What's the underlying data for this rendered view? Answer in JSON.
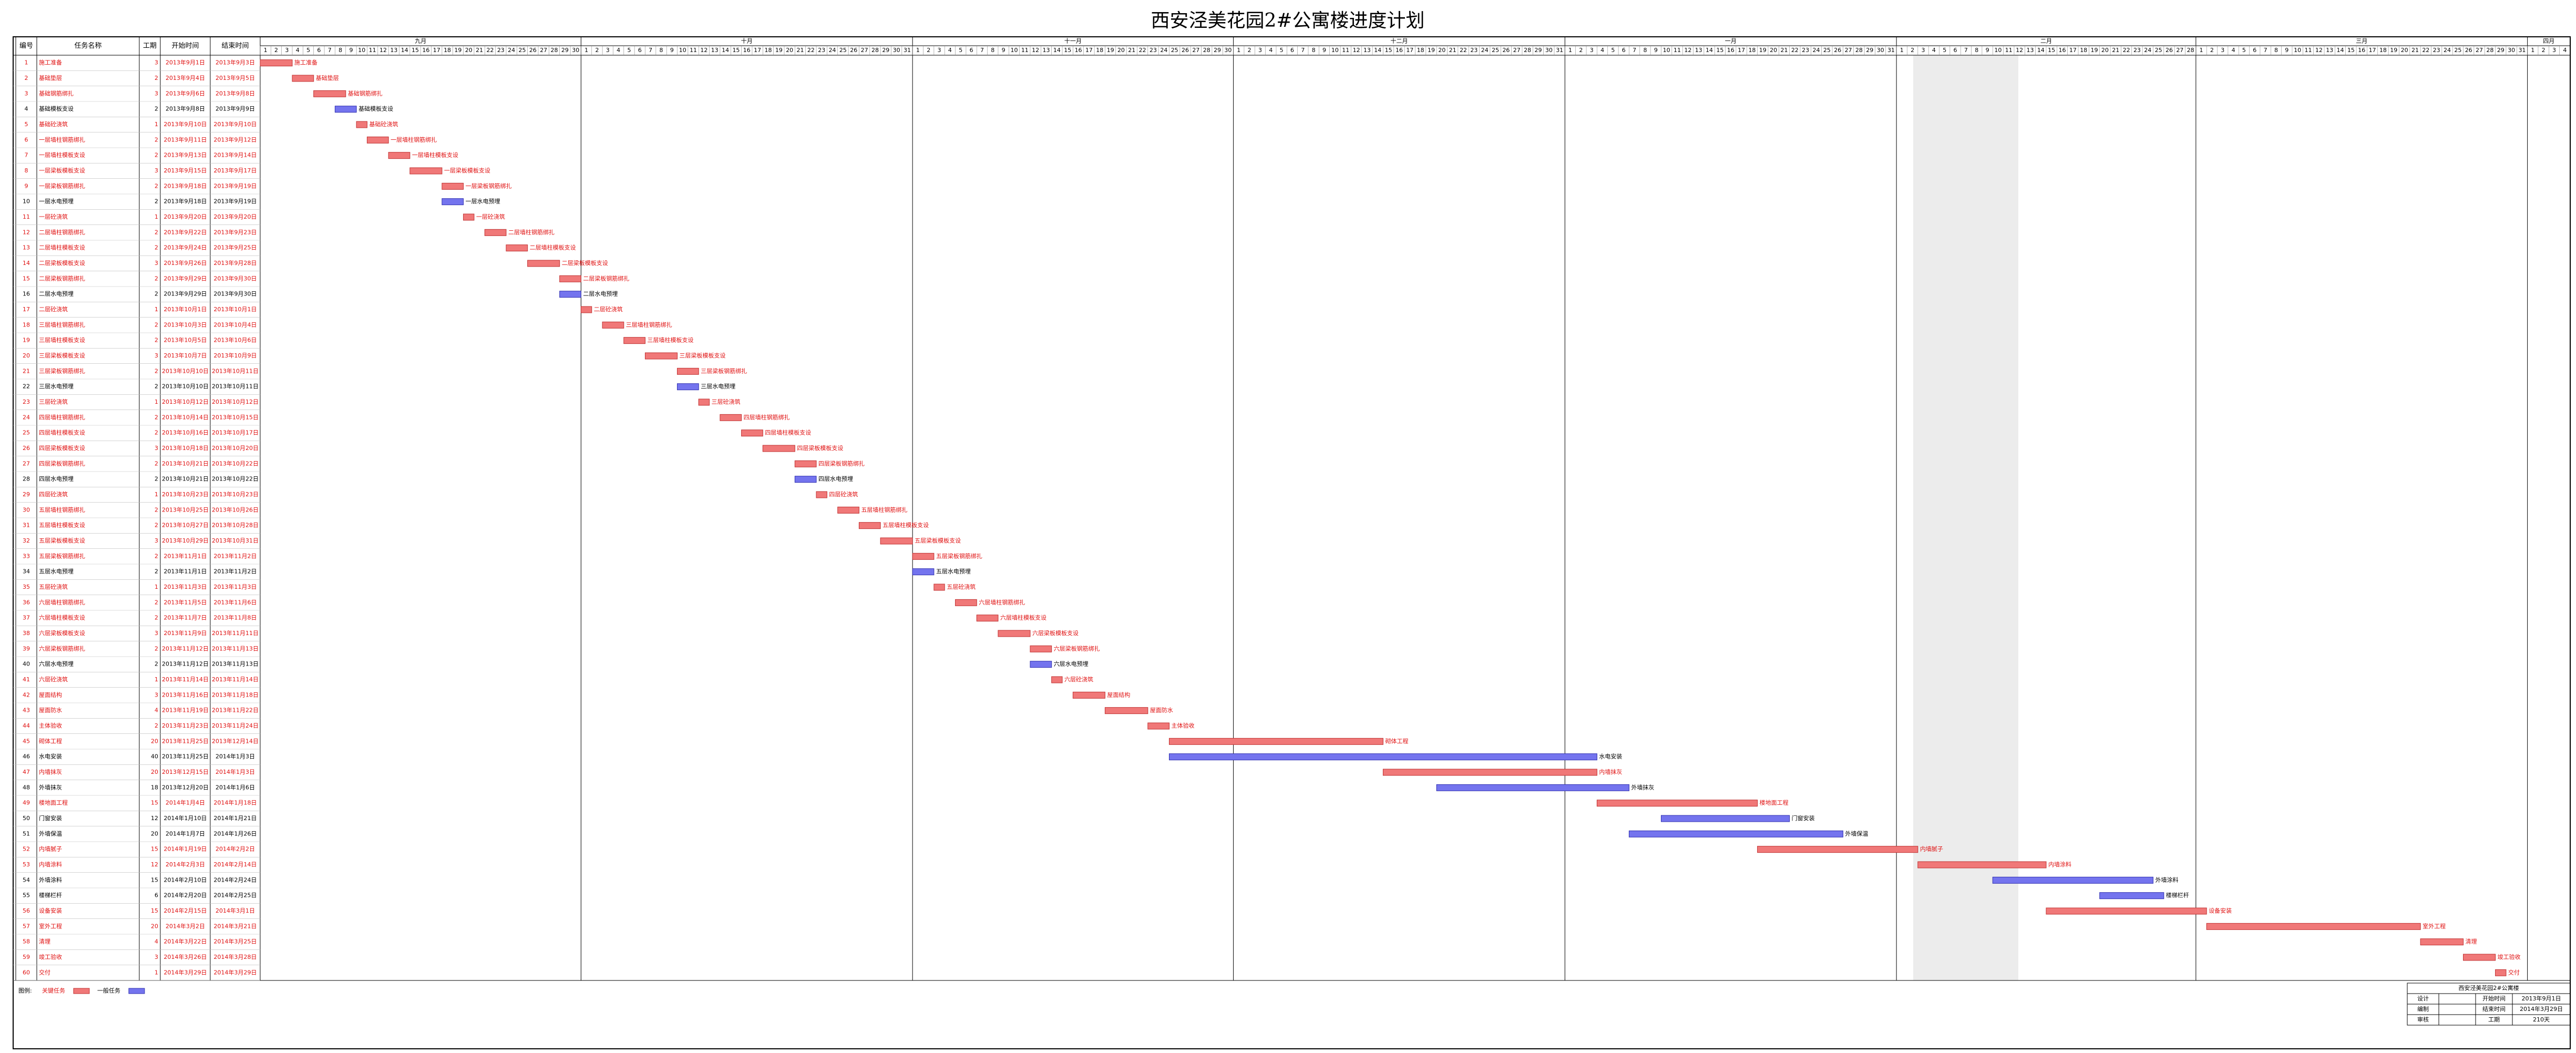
{
  "title": "西安泾美花园2#公寓楼进度计划",
  "table": {
    "header": [
      "编号",
      "任务名称",
      "工期",
      "开始时间",
      "结束时间"
    ],
    "rows": [
      [
        1,
        "施工准备",
        3,
        "2013年9月1日",
        "2013年9月3日",
        true
      ],
      [
        2,
        "基础垫层",
        2,
        "2013年9月4日",
        "2013年9月5日",
        true
      ],
      [
        3,
        "基础钢筋绑扎",
        3,
        "2013年9月6日",
        "2013年9月8日",
        true
      ],
      [
        4,
        "基础模板支设",
        2,
        "2013年9月8日",
        "2013年9月9日",
        false
      ],
      [
        5,
        "基础砼浇筑",
        1,
        "2013年9月10日",
        "2013年9月10日",
        true
      ],
      [
        6,
        "一层墙柱钢筋绑扎",
        2,
        "2013年9月11日",
        "2013年9月12日",
        true
      ],
      [
        7,
        "一层墙柱模板支设",
        2,
        "2013年9月13日",
        "2013年9月14日",
        true
      ],
      [
        8,
        "一层梁板模板支设",
        3,
        "2013年9月15日",
        "2013年9月17日",
        true
      ],
      [
        9,
        "一层梁板钢筋绑扎",
        2,
        "2013年9月18日",
        "2013年9月19日",
        true
      ],
      [
        10,
        "一层水电预埋",
        2,
        "2013年9月18日",
        "2013年9月19日",
        false
      ],
      [
        11,
        "一层砼浇筑",
        1,
        "2013年9月20日",
        "2013年9月20日",
        true
      ],
      [
        12,
        "二层墙柱钢筋绑扎",
        2,
        "2013年9月22日",
        "2013年9月23日",
        true
      ],
      [
        13,
        "二层墙柱模板支设",
        2,
        "2013年9月24日",
        "2013年9月25日",
        true
      ],
      [
        14,
        "二层梁板模板支设",
        3,
        "2013年9月26日",
        "2013年9月28日",
        true
      ],
      [
        15,
        "二层梁板钢筋绑扎",
        2,
        "2013年9月29日",
        "2013年9月30日",
        true
      ],
      [
        16,
        "二层水电预埋",
        2,
        "2013年9月29日",
        "2013年9月30日",
        false
      ],
      [
        17,
        "二层砼浇筑",
        1,
        "2013年10月1日",
        "2013年10月1日",
        true
      ],
      [
        18,
        "三层墙柱钢筋绑扎",
        2,
        "2013年10月3日",
        "2013年10月4日",
        true
      ],
      [
        19,
        "三层墙柱模板支设",
        2,
        "2013年10月5日",
        "2013年10月6日",
        true
      ],
      [
        20,
        "三层梁板模板支设",
        3,
        "2013年10月7日",
        "2013年10月9日",
        true
      ],
      [
        21,
        "三层梁板钢筋绑扎",
        2,
        "2013年10月10日",
        "2013年10月11日",
        true
      ],
      [
        22,
        "三层水电预埋",
        2,
        "2013年10月10日",
        "2013年10月11日",
        false
      ],
      [
        23,
        "三层砼浇筑",
        1,
        "2013年10月12日",
        "2013年10月12日",
        true
      ],
      [
        24,
        "四层墙柱钢筋绑扎",
        2,
        "2013年10月14日",
        "2013年10月15日",
        true
      ],
      [
        25,
        "四层墙柱模板支设",
        2,
        "2013年10月16日",
        "2013年10月17日",
        true
      ],
      [
        26,
        "四层梁板模板支设",
        3,
        "2013年10月18日",
        "2013年10月20日",
        true
      ],
      [
        27,
        "四层梁板钢筋绑扎",
        2,
        "2013年10月21日",
        "2013年10月22日",
        true
      ],
      [
        28,
        "四层水电预埋",
        2,
        "2013年10月21日",
        "2013年10月22日",
        false
      ],
      [
        29,
        "四层砼浇筑",
        1,
        "2013年10月23日",
        "2013年10月23日",
        true
      ],
      [
        30,
        "五层墙柱钢筋绑扎",
        2,
        "2013年10月25日",
        "2013年10月26日",
        true
      ],
      [
        31,
        "五层墙柱模板支设",
        2,
        "2013年10月27日",
        "2013年10月28日",
        true
      ],
      [
        32,
        "五层梁板模板支设",
        3,
        "2013年10月29日",
        "2013年10月31日",
        true
      ],
      [
        33,
        "五层梁板钢筋绑扎",
        2,
        "2013年11月1日",
        "2013年11月2日",
        true
      ],
      [
        34,
        "五层水电预埋",
        2,
        "2013年11月1日",
        "2013年11月2日",
        false
      ],
      [
        35,
        "五层砼浇筑",
        1,
        "2013年11月3日",
        "2013年11月3日",
        true
      ],
      [
        36,
        "六层墙柱钢筋绑扎",
        2,
        "2013年11月5日",
        "2013年11月6日",
        true
      ],
      [
        37,
        "六层墙柱模板支设",
        2,
        "2013年11月7日",
        "2013年11月8日",
        true
      ],
      [
        38,
        "六层梁板模板支设",
        3,
        "2013年11月9日",
        "2013年11月11日",
        true
      ],
      [
        39,
        "六层梁板钢筋绑扎",
        2,
        "2013年11月12日",
        "2013年11月13日",
        true
      ],
      [
        40,
        "六层水电预埋",
        2,
        "2013年11月12日",
        "2013年11月13日",
        false
      ],
      [
        41,
        "六层砼浇筑",
        1,
        "2013年11月14日",
        "2013年11月14日",
        true
      ],
      [
        42,
        "屋面结构",
        3,
        "2013年11月16日",
        "2013年11月18日",
        true
      ],
      [
        43,
        "屋面防水",
        4,
        "2013年11月19日",
        "2013年11月22日",
        true
      ],
      [
        44,
        "主体验收",
        2,
        "2013年11月23日",
        "2013年11月24日",
        true
      ],
      [
        45,
        "砌体工程",
        20,
        "2013年11月25日",
        "2013年12月14日",
        true
      ],
      [
        46,
        "水电安装",
        40,
        "2013年11月25日",
        "2014年1月3日",
        false
      ],
      [
        47,
        "内墙抹灰",
        20,
        "2013年12月15日",
        "2014年1月3日",
        true
      ],
      [
        48,
        "外墙抹灰",
        18,
        "2013年12月20日",
        "2014年1月6日",
        false
      ],
      [
        49,
        "楼地面工程",
        15,
        "2014年1月4日",
        "2014年1月18日",
        true
      ],
      [
        50,
        "门窗安装",
        12,
        "2014年1月10日",
        "2014年1月21日",
        false
      ],
      [
        51,
        "外墙保温",
        20,
        "2014年1月7日",
        "2014年1月26日",
        false
      ],
      [
        52,
        "内墙腻子",
        15,
        "2014年1月19日",
        "2014年2月2日",
        true
      ],
      [
        53,
        "内墙涂料",
        12,
        "2014年2月3日",
        "2014年2月14日",
        true
      ],
      [
        54,
        "外墙涂料",
        15,
        "2014年2月10日",
        "2014年2月24日",
        false
      ],
      [
        55,
        "楼梯栏杆",
        6,
        "2014年2月20日",
        "2014年2月25日",
        false
      ],
      [
        56,
        "设备安装",
        15,
        "2014年2月15日",
        "2014年3月1日",
        true
      ],
      [
        57,
        "室外工程",
        20,
        "2014年3月2日",
        "2014年3月21日",
        true
      ],
      [
        58,
        "清理",
        4,
        "2014年3月22日",
        "2014年3月25日",
        true
      ],
      [
        59,
        "竣工验收",
        3,
        "2014年3月26日",
        "2014年3月28日",
        true
      ],
      [
        60,
        "交付",
        1,
        "2014年3月29日",
        "2014年3月29日",
        true
      ]
    ]
  },
  "timeline": {
    "months": [
      {
        "label": "九月",
        "days": [
          1,
          2,
          3,
          4,
          5,
          6,
          7,
          8,
          9,
          10,
          11,
          12,
          13,
          14,
          15,
          16,
          17,
          18,
          19,
          20,
          21,
          22,
          23,
          24,
          25,
          26,
          27,
          28,
          29,
          30
        ]
      },
      {
        "label": "十月",
        "days": [
          1,
          2,
          3,
          4,
          5,
          6,
          7,
          8,
          9,
          10,
          11,
          12,
          13,
          14,
          15,
          16,
          17,
          18,
          19,
          20,
          21,
          22,
          23,
          24,
          25,
          26,
          27,
          28,
          29,
          30,
          31
        ]
      },
      {
        "label": "十一月",
        "days": [
          1,
          2,
          3,
          4,
          5,
          6,
          7,
          8,
          9,
          10,
          11,
          12,
          13,
          14,
          15,
          16,
          17,
          18,
          19,
          20,
          21,
          22,
          23,
          24,
          25,
          26,
          27,
          28,
          29,
          30
        ]
      },
      {
        "label": "十二月",
        "days": [
          1,
          2,
          3,
          4,
          5,
          6,
          7,
          8,
          9,
          10,
          11,
          12,
          13,
          14,
          15,
          16,
          17,
          18,
          19,
          20,
          21,
          22,
          23,
          24,
          25,
          26,
          27,
          28,
          29,
          30,
          31
        ]
      },
      {
        "label": "一月",
        "days": [
          1,
          2,
          3,
          4,
          5,
          6,
          7,
          8,
          9,
          10,
          11,
          12,
          13,
          14,
          15,
          16,
          17,
          18,
          19,
          20,
          21,
          22,
          23,
          24,
          25,
          26,
          27,
          28,
          29,
          30,
          31
        ]
      },
      {
        "label": "二月",
        "days": [
          1,
          2,
          3,
          4,
          5,
          6,
          7,
          8,
          9,
          10,
          11,
          12,
          13,
          14,
          15,
          16,
          17,
          18,
          19,
          20,
          21,
          22,
          23,
          24,
          25,
          26,
          27,
          28
        ]
      },
      {
        "label": "三月",
        "days": [
          1,
          2,
          3,
          4,
          5,
          6,
          7,
          8,
          9,
          10,
          11,
          12,
          13,
          14,
          15,
          16,
          17,
          18,
          19,
          20,
          21,
          22,
          23,
          24,
          25,
          26,
          27,
          28,
          29,
          30,
          31
        ]
      },
      {
        "label": "四月",
        "days": [
          1,
          2,
          3,
          4
        ]
      }
    ]
  },
  "colors": {
    "critical": "#f07878",
    "normal": "#7474ee",
    "critical_text": "#e01010",
    "normal_text": "#000000"
  },
  "legend": {
    "title": "图例:",
    "critical": "关键任务",
    "normal": "一般任务"
  },
  "titleblock": {
    "project": "西安泾美花园2#公寓楼",
    "cells": [
      [
        "设计",
        "",
        "开始时间",
        "2013年9月1日"
      ],
      [
        "编制",
        "",
        "结束时间",
        "2014年3月29日"
      ],
      [
        "审核",
        "",
        "工期",
        "210天"
      ]
    ]
  }
}
